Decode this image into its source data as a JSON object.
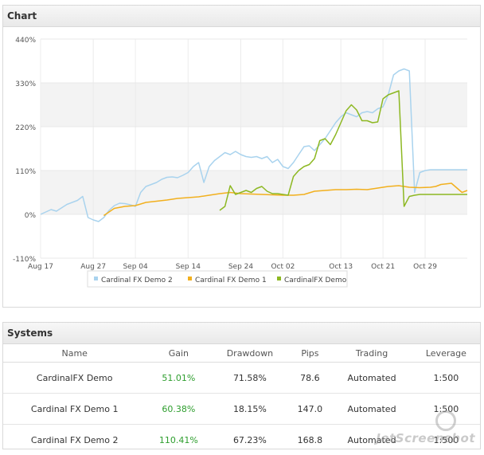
{
  "chart_panel": {
    "title": "Chart"
  },
  "systems_panel": {
    "title": "Systems"
  },
  "chart_data": {
    "type": "line",
    "title": "",
    "xlabel": "",
    "ylabel": "",
    "ylim": [
      -110,
      440
    ],
    "yticks": [
      "-110%",
      "0%",
      "110%",
      "220%",
      "330%",
      "440%"
    ],
    "yticks_values": [
      -110,
      0,
      110,
      220,
      330,
      440
    ],
    "x_tick_labels": [
      "Aug 17",
      "Aug 27",
      "Sep 04",
      "Sep 14",
      "Sep 24",
      "Oct 02",
      "Oct 13",
      "Oct 21",
      "Oct 29"
    ],
    "x_tick_positions": [
      0,
      10,
      18,
      28,
      38,
      46,
      57,
      65,
      73
    ],
    "x_range": [
      0,
      81
    ],
    "grid": true,
    "legend_position": "bottom-center",
    "series": [
      {
        "name": "Cardinal FX Demo 2",
        "color": "#a9d3ee",
        "x": [
          0,
          2,
          3,
          5,
          7,
          8,
          9,
          10,
          11,
          12,
          13,
          14,
          15,
          16,
          17,
          18,
          19,
          20,
          21,
          22,
          23,
          24,
          25,
          26,
          27,
          28,
          29,
          30,
          31,
          32,
          33,
          34,
          35,
          36,
          37,
          38,
          39,
          40,
          41,
          42,
          43,
          44,
          45,
          46,
          47,
          48,
          49,
          50,
          51,
          52,
          53,
          54,
          55,
          56,
          57,
          58,
          59,
          60,
          61,
          62,
          63,
          64,
          65,
          66,
          67,
          68,
          69,
          70,
          71,
          72,
          73,
          74,
          75,
          76,
          77,
          78,
          79,
          80,
          81
        ],
        "values": [
          0,
          12,
          8,
          25,
          35,
          45,
          -8,
          -14,
          -18,
          -8,
          10,
          22,
          28,
          27,
          24,
          20,
          55,
          70,
          75,
          80,
          88,
          93,
          94,
          92,
          98,
          105,
          120,
          130,
          80,
          120,
          135,
          145,
          155,
          150,
          158,
          150,
          145,
          143,
          145,
          140,
          145,
          130,
          138,
          120,
          115,
          130,
          150,
          170,
          172,
          160,
          175,
          190,
          210,
          230,
          245,
          255,
          250,
          245,
          255,
          258,
          255,
          265,
          270,
          300,
          350,
          360,
          365,
          360,
          55,
          105,
          110,
          112,
          112,
          112,
          112,
          112,
          112,
          112,
          112
        ],
        "_note_unused": ""
      },
      {
        "name": "Cardinal FX Demo 1",
        "color": "#f2b01e",
        "x": [
          12,
          14,
          16,
          18,
          20,
          22,
          24,
          26,
          28,
          30,
          32,
          34,
          36,
          38,
          40,
          42,
          44,
          46,
          48,
          50,
          52,
          54,
          56,
          58,
          60,
          62,
          64,
          66,
          68,
          70,
          72,
          74,
          75,
          76,
          78,
          80,
          81
        ],
        "values": [
          -3,
          15,
          20,
          22,
          30,
          33,
          36,
          40,
          42,
          44,
          48,
          52,
          55,
          52,
          51,
          50,
          49,
          48,
          48,
          50,
          58,
          60,
          62,
          62,
          63,
          62,
          66,
          70,
          72,
          68,
          67,
          68,
          70,
          75,
          78,
          55,
          60
        ],
        "_note_unused": ""
      },
      {
        "name": "CardinalFX Demo",
        "color": "#8db822",
        "x": [
          34,
          35,
          36,
          37,
          38,
          39,
          40,
          41,
          42,
          43,
          44,
          45,
          46,
          47,
          48,
          49,
          50,
          51,
          52,
          53,
          54,
          55,
          56,
          57,
          58,
          59,
          60,
          61,
          62,
          63,
          64,
          65,
          66,
          67,
          68,
          69,
          70,
          71,
          72,
          73,
          74,
          75,
          76,
          77,
          78,
          79,
          80,
          81
        ],
        "values": [
          10,
          20,
          72,
          50,
          55,
          60,
          55,
          65,
          70,
          58,
          52,
          52,
          50,
          48,
          95,
          110,
          120,
          125,
          140,
          185,
          190,
          175,
          200,
          230,
          260,
          275,
          262,
          235,
          235,
          230,
          232,
          290,
          300,
          305,
          310,
          20,
          45,
          48,
          50,
          50,
          50,
          50,
          50,
          50,
          50,
          50,
          50,
          50
        ],
        "_note_unused": ""
      }
    ]
  },
  "systems": {
    "columns": [
      "Name",
      "Gain",
      "Drawdown",
      "Pips",
      "Trading",
      "Leverage"
    ],
    "rows": [
      {
        "name": "CardinalFX Demo",
        "gain": "51.01%",
        "drawdown": "71.58%",
        "pips": "78.6",
        "trading": "Automated",
        "leverage": "1:500"
      },
      {
        "name": "Cardinal FX Demo 1",
        "gain": "60.38%",
        "drawdown": "18.15%",
        "pips": "147.0",
        "trading": "Automated",
        "leverage": "1:500"
      },
      {
        "name": "Cardinal FX Demo 2",
        "gain": "110.41%",
        "drawdown": "67.23%",
        "pips": "168.8",
        "trading": "Automated",
        "leverage": "1:500"
      }
    ]
  },
  "watermark": {
    "text": "JetScreenshot"
  }
}
